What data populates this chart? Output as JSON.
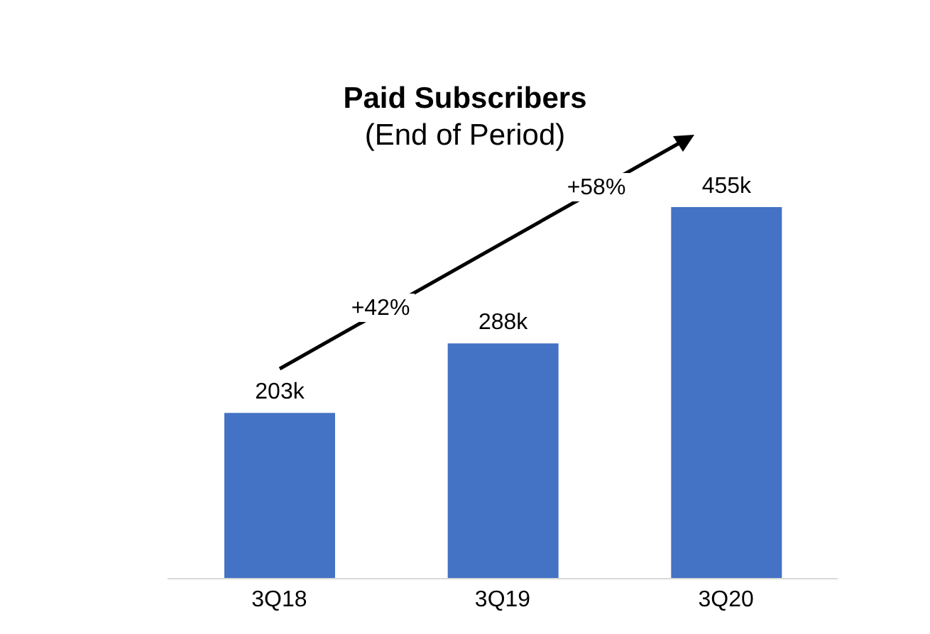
{
  "chart_data": {
    "type": "bar",
    "title": "Paid Subscribers",
    "subtitle": "(End of Period)",
    "categories": [
      "3Q18",
      "3Q19",
      "3Q20"
    ],
    "values": [
      203,
      288,
      455
    ],
    "value_labels": [
      "203k",
      "288k",
      "455k"
    ],
    "color": "#4472c4",
    "annotations": [
      "+42%",
      "+58%"
    ]
  }
}
